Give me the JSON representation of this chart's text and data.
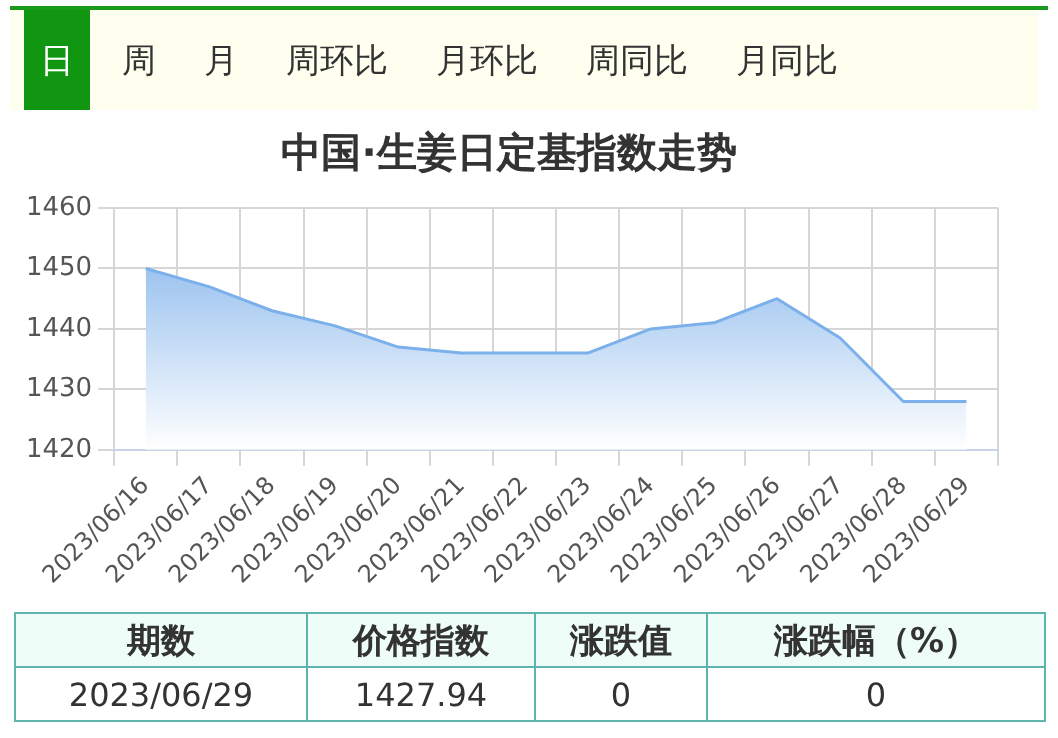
{
  "chart_data": {
    "type": "area",
    "title": "中国·生姜日定基指数走势",
    "categories": [
      "2023/06/16",
      "2023/06/17",
      "2023/06/18",
      "2023/06/19",
      "2023/06/20",
      "2023/06/21",
      "2023/06/22",
      "2023/06/23",
      "2023/06/24",
      "2023/06/25",
      "2023/06/26",
      "2023/06/27",
      "2023/06/28",
      "2023/06/29"
    ],
    "series": [
      {
        "color": "#7cb0ea",
        "values": [
          1450,
          1447,
          1443,
          1440.5,
          1437,
          1436,
          1436,
          1436,
          1440,
          1441,
          1445,
          1438.5,
          1428,
          1428
        ]
      }
    ],
    "ylim": [
      1420,
      1460
    ],
    "yticks": [
      1420,
      1430,
      1440,
      1450,
      1460
    ],
    "grid": true,
    "legend": false,
    "marker": "none",
    "annotations": [
      "日",
      "周",
      "月",
      "周环比",
      "月环比",
      "周同比",
      "月同比",
      "期数",
      "价格指数",
      "涨跌值",
      "涨跌幅（%）",
      "2023/06/29",
      "1427.94",
      "0",
      "0"
    ]
  }
}
